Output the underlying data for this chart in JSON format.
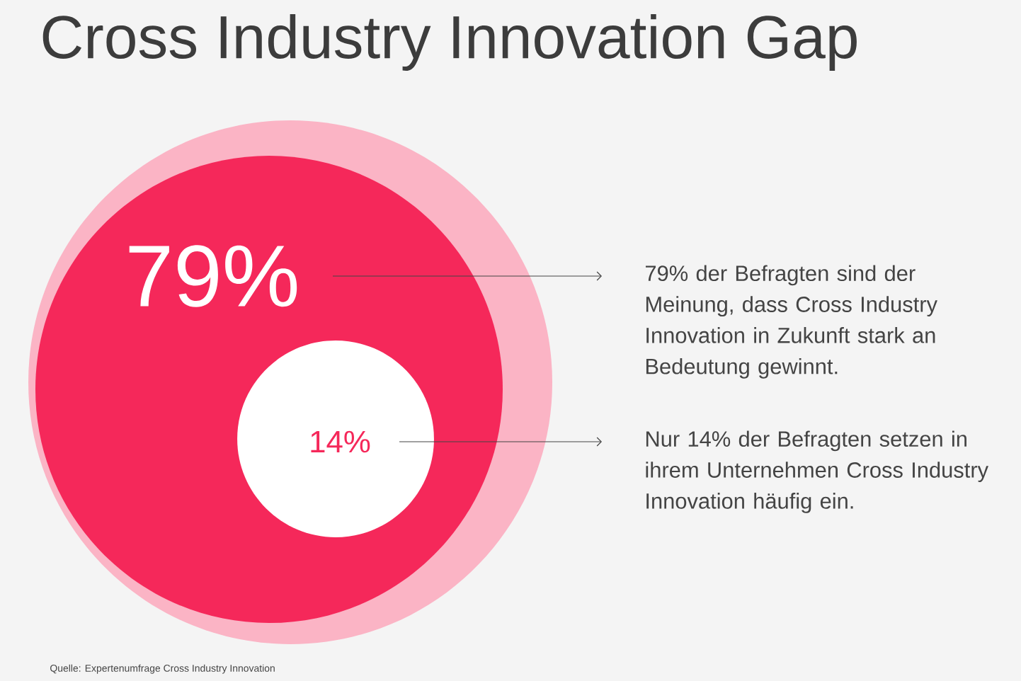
{
  "chart_data": {
    "type": "other",
    "title": "Cross Industry Innovation Gap",
    "values": [
      79,
      14
    ],
    "value_labels": [
      "79%",
      "14%"
    ],
    "colors": [
      "#f5285a",
      "#ffffff"
    ],
    "annotations": [
      "79% der Befragten sind der Meinung, dass Cross Industry Innovation in Zukunft stark an Bedeutung gewinnt.",
      "Nur 14% der Befragten setzen in ihrem Unternehmen Cross Industry Innovation häufig ein.",
      "Quelle: Expertenumfrage Cross Industry Innovation"
    ]
  }
}
